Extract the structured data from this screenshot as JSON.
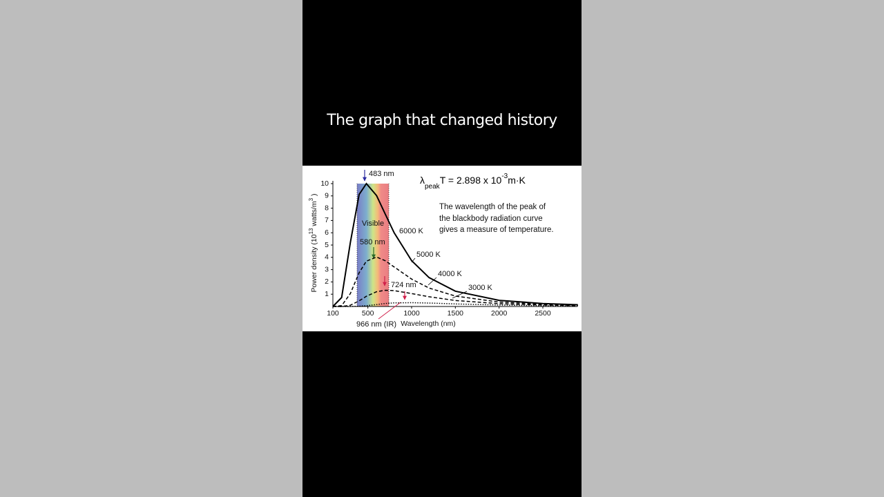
{
  "caption": "The graph that changed history",
  "chart_data": {
    "type": "line",
    "x_label": "Wavelength (nm)",
    "y_label_parts": [
      "Power density (10",
      "13",
      " watts/m",
      "3",
      " )"
    ],
    "formula": {
      "symbol": "λ",
      "subscript": "peak",
      "main": "T = 2.898  x 10",
      "exponent": "-3",
      "unit": "m·K"
    },
    "description": [
      "The wavelength of the peak of",
      "the blackbody radiation curve",
      "gives a measure of temperature."
    ],
    "band_label": "Visible",
    "annotations": [
      "483 nm",
      "580 nm",
      "724 nm",
      "966 nm (IR)"
    ],
    "x": [
      100,
      200,
      300,
      400,
      483,
      600,
      700,
      800,
      1000,
      1200,
      1500,
      2000,
      2500,
      2900
    ],
    "series": [
      {
        "name": "6000 K",
        "color": "#000000",
        "style": "solid",
        "values": [
          0,
          0.73,
          5.21,
          9.12,
          10,
          9.02,
          7.5,
          6.0,
          3.73,
          2.35,
          1.25,
          0.5,
          0.24,
          0.14
        ]
      },
      {
        "name": "5000 K",
        "color": "#000000",
        "style": "dashed",
        "values": [
          0,
          0.07,
          1.05,
          2.75,
          3.69,
          4.02,
          3.72,
          3.22,
          2.23,
          1.5,
          0.85,
          0.36,
          0.18,
          0.11
        ]
      },
      {
        "name": "4000 K",
        "color": "#000000",
        "style": "dashed",
        "values": [
          0,
          0,
          0.1,
          0.46,
          0.83,
          1.2,
          1.32,
          1.29,
          1.05,
          0.79,
          0.49,
          0.23,
          0.12,
          0.07
        ]
      },
      {
        "name": "3000 K",
        "color": "#000000",
        "style": "dotted",
        "values": [
          0,
          0,
          0,
          0.02,
          0.07,
          0.16,
          0.24,
          0.29,
          0.31,
          0.28,
          0.21,
          0.12,
          0.066,
          0.043
        ]
      }
    ],
    "xlim": [
      100,
      2900
    ],
    "xticks": [
      100,
      500,
      1000,
      1500,
      2000,
      2500
    ],
    "ylim": [
      0,
      10
    ],
    "yticks": [
      1,
      2,
      3,
      4,
      5,
      6,
      7,
      8,
      9,
      10
    ]
  }
}
